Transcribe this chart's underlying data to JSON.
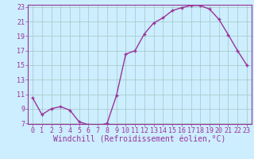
{
  "x": [
    0,
    1,
    2,
    3,
    4,
    5,
    6,
    7,
    8,
    9,
    10,
    11,
    12,
    13,
    14,
    15,
    16,
    17,
    18,
    19,
    20,
    21,
    22,
    23
  ],
  "y": [
    10.5,
    8.2,
    9.0,
    9.3,
    8.8,
    7.2,
    6.8,
    6.6,
    7.0,
    10.8,
    16.5,
    17.0,
    19.3,
    20.8,
    21.5,
    22.5,
    22.9,
    23.2,
    23.2,
    22.7,
    21.3,
    19.2,
    17.0,
    15.0
  ],
  "line_color": "#993399",
  "marker": "+",
  "marker_size": 3,
  "bg_color": "#cceeff",
  "grid_color": "#aacccc",
  "xlabel": "Windchill (Refroidissement éolien,°C)",
  "ylim": [
    7,
    23
  ],
  "xlim": [
    -0.5,
    23.5
  ],
  "yticks": [
    7,
    9,
    11,
    13,
    15,
    17,
    19,
    21,
    23
  ],
  "xticks": [
    0,
    1,
    2,
    3,
    4,
    5,
    6,
    7,
    8,
    9,
    10,
    11,
    12,
    13,
    14,
    15,
    16,
    17,
    18,
    19,
    20,
    21,
    22,
    23
  ],
  "line_color_hex": "#993399",
  "tick_label_color": "#993399",
  "xlabel_color": "#993399",
  "xlabel_fontsize": 7,
  "tick_fontsize": 6,
  "line_width": 1.0,
  "marker_edge_width": 1.0
}
